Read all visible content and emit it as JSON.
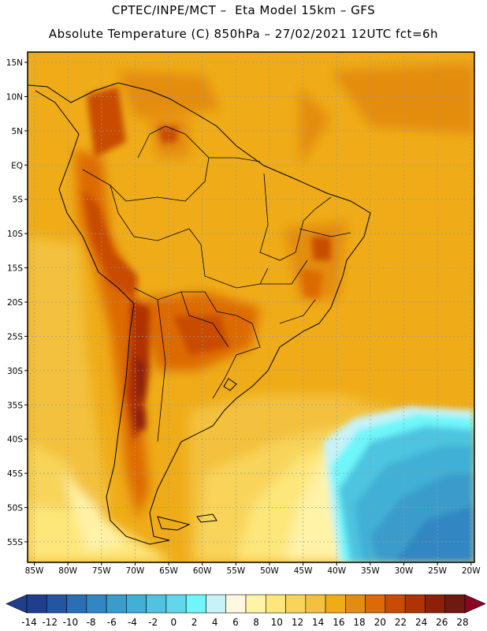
{
  "header": {
    "line1": "CPTEC/INPE/MCT –  Eta Model 15km – GFS",
    "line2": "Absolute Temperature (C) 850hPa – 27/02/2021 12UTC fct=6h"
  },
  "axes": {
    "lat_labels": [
      "15N",
      "10N",
      "5N",
      "EQ",
      "5S",
      "10S",
      "15S",
      "20S",
      "25S",
      "30S",
      "35S",
      "40S",
      "45S",
      "50S",
      "55S"
    ],
    "lat_values": [
      15,
      10,
      5,
      0,
      -5,
      -10,
      -15,
      -20,
      -25,
      -30,
      -35,
      -40,
      -45,
      -50,
      -55
    ],
    "lon_labels": [
      "85W",
      "80W",
      "75W",
      "70W",
      "65W",
      "60W",
      "55W",
      "50W",
      "45W",
      "40W",
      "35W",
      "30W",
      "25W",
      "20W"
    ],
    "lon_values": [
      -85,
      -80,
      -75,
      -70,
      -65,
      -60,
      -55,
      -50,
      -45,
      -40,
      -35,
      -30,
      -25,
      -20
    ],
    "lon_range": [
      -86,
      -19.5
    ],
    "lat_range": [
      -58,
      16.5
    ]
  },
  "colorbar": {
    "labels": [
      "-14",
      "-12",
      "-10",
      "-8",
      "-6",
      "-4",
      "-2",
      "0",
      "2",
      "4",
      "6",
      "8",
      "10",
      "12",
      "14",
      "16",
      "18",
      "20",
      "22",
      "24",
      "26",
      "28"
    ],
    "colors": [
      "#1f3f8c",
      "#2455a0",
      "#2a6fb4",
      "#3287c2",
      "#3a9ccb",
      "#41b0d6",
      "#4ec4e0",
      "#5ed8ea",
      "#6ef6fa",
      "#c8f2f7",
      "#fff7e0",
      "#fff3a8",
      "#fde67a",
      "#f8d45a",
      "#f3c13e",
      "#efac18",
      "#e48c10",
      "#dd6a06",
      "#c84b06",
      "#b03306",
      "#8f2008",
      "#6e1a10",
      "#8a0622"
    ],
    "unit": "C"
  }
}
